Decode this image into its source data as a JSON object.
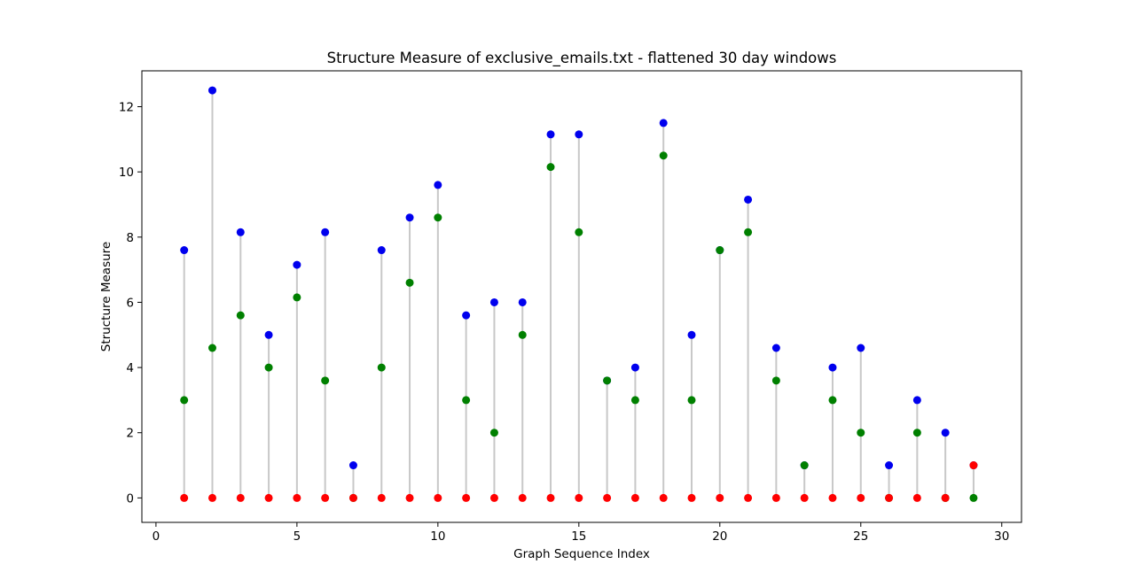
{
  "chart_data": {
    "type": "scatter",
    "title": "Structure Measure of exclusive_emails.txt - flattened 30 day windows",
    "xlabel": "Graph Sequence Index",
    "ylabel": "Structure Measure",
    "xlim": [
      -0.5,
      30.7
    ],
    "ylim": [
      -0.75,
      13.1
    ],
    "x_ticks": [
      0,
      5,
      10,
      15,
      20,
      25,
      30
    ],
    "y_ticks": [
      0,
      2,
      4,
      6,
      8,
      10,
      12
    ],
    "grid": false,
    "colors": {
      "range_line": "#c8c8c8",
      "upper": "#0000ee",
      "middle": "#008000",
      "lower": "#ff0000",
      "axes": "#000000"
    },
    "x": [
      1,
      2,
      3,
      4,
      5,
      6,
      7,
      8,
      9,
      10,
      11,
      12,
      13,
      14,
      15,
      16,
      17,
      18,
      19,
      20,
      21,
      22,
      23,
      24,
      25,
      26,
      27,
      28,
      29
    ],
    "series": [
      {
        "color": "#0000ee",
        "values": [
          7.6,
          12.5,
          8.15,
          5,
          7.15,
          8.15,
          1,
          7.6,
          8.6,
          9.6,
          5.6,
          6,
          6,
          11.15,
          11.15,
          3.6,
          4,
          11.5,
          5,
          7.6,
          9.15,
          4.6,
          1,
          4,
          4.6,
          1,
          3,
          2,
          1
        ]
      },
      {
        "color": "#008000",
        "values": [
          3,
          4.6,
          5.6,
          4,
          6.15,
          3.6,
          0,
          4,
          6.6,
          8.6,
          3,
          2,
          5,
          10.15,
          8.15,
          3.6,
          3,
          10.5,
          3,
          7.6,
          8.15,
          3.6,
          1,
          3,
          2,
          0,
          2,
          0,
          0
        ]
      },
      {
        "color": "#ff0000",
        "values": [
          0,
          0,
          0,
          0,
          0,
          0,
          0,
          0,
          0,
          0,
          0,
          0,
          0,
          0,
          0,
          0,
          0,
          0,
          0,
          0,
          0,
          0,
          0,
          0,
          0,
          0,
          0,
          0,
          1
        ]
      }
    ]
  }
}
